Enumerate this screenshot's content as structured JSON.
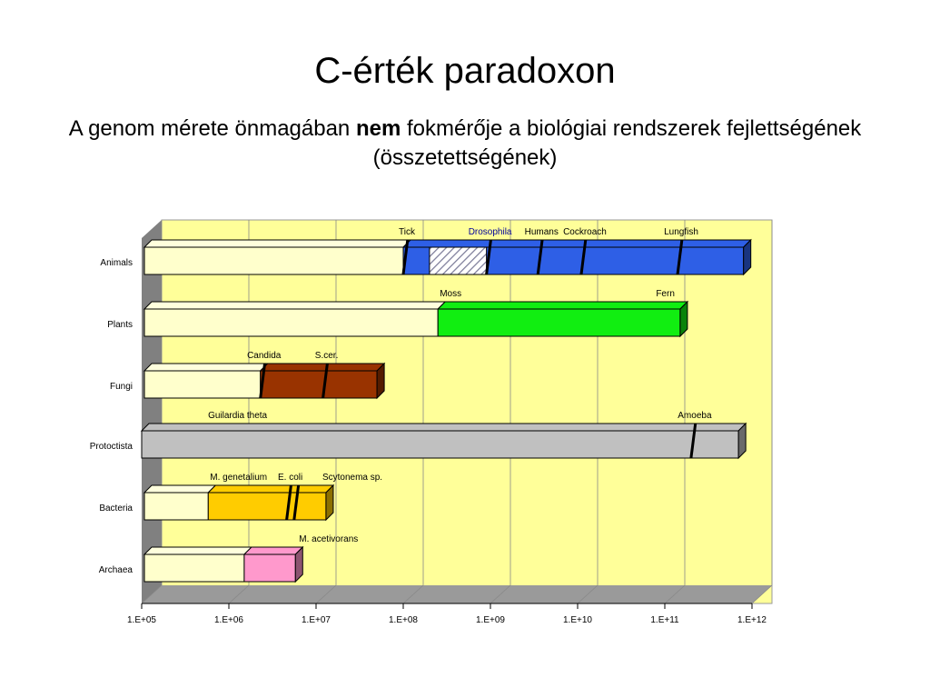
{
  "slide": {
    "title": "C-érték paradoxon",
    "subtitle_before": "A genom mérete önmagában ",
    "subtitle_bold": "nem",
    "subtitle_after": " fokmérője a biológiai rendszerek fejlettségének (összetettségének)"
  },
  "chart_data": {
    "type": "bar",
    "subtype": "floating range bar, 3D",
    "x_scale": "log",
    "xlim": [
      100000,
      1000000000000
    ],
    "x_ticks": [
      "1.E+05",
      "1.E+06",
      "1.E+07",
      "1.E+08",
      "1.E+09",
      "1.E+10",
      "1.E+11",
      "1.E+12"
    ],
    "grid": true,
    "background": "#ffff99",
    "categories": [
      "Animals",
      "Plants",
      "Fungi",
      "Protoctista",
      "Bacteria",
      "Archaea"
    ],
    "rows": [
      {
        "category": "Animals",
        "range": [
          100000000,
          800000000000
        ],
        "segments": [
          {
            "from": 100000000,
            "to": 800000000000,
            "color": "#2e5fe6"
          },
          {
            "from": 200000000,
            "to": 900000000,
            "color": "hatched"
          }
        ],
        "markers": [
          {
            "label": "Tick",
            "x": 100000000,
            "color": "#000000"
          },
          {
            "label": "Drosophila",
            "x": 900000000,
            "color": "#000099"
          },
          {
            "label": "Humans",
            "x": 3500000000,
            "color": "#000000"
          },
          {
            "label": "Cockroach",
            "x": 11000000000,
            "color": "#000000"
          },
          {
            "label": "Lungfish",
            "x": 140000000000,
            "color": "#000000"
          }
        ]
      },
      {
        "category": "Plants",
        "range": [
          250000000,
          150000000000
        ],
        "segments": [
          {
            "from": 250000000,
            "to": 150000000000,
            "color": "#11ee11"
          }
        ],
        "markers": [],
        "labels": [
          {
            "label": "Moss",
            "x": 250000000
          },
          {
            "label": "Fern",
            "x": 150000000000
          }
        ]
      },
      {
        "category": "Fungi",
        "range": [
          2300000,
          50000000
        ],
        "segments": [
          {
            "from": 2300000,
            "to": 50000000,
            "color": "#993300"
          }
        ],
        "markers": [
          {
            "label": "Candida",
            "x": 2300000,
            "color": "#000000"
          },
          {
            "label": "S.cer.",
            "x": 12000000,
            "color": "#000000"
          }
        ]
      },
      {
        "category": "Protoctista",
        "range": [
          100000,
          700000000000
        ],
        "segments": [
          {
            "from": 100000,
            "to": 700000000000,
            "color": "#c0c0c0"
          }
        ],
        "markers": [
          {
            "label": "Amoeba",
            "x": 200000000000,
            "color": "#000000"
          }
        ],
        "labels": [
          {
            "label": "Guilardia theta",
            "x": 550000
          }
        ]
      },
      {
        "category": "Bacteria",
        "range": [
          580000,
          13000000
        ],
        "segments": [
          {
            "from": 580000,
            "to": 13000000,
            "color": "#ffcc00"
          }
        ],
        "markers": [
          {
            "label": "",
            "x": 4600000,
            "color": "#000000"
          },
          {
            "label": "",
            "x": 5600000,
            "color": "#000000"
          }
        ],
        "labels": [
          {
            "label": "M. genetalium",
            "x": 580000
          },
          {
            "label": "E. coli",
            "x": 4600000
          },
          {
            "label": "Scytonema sp.",
            "x": 13000000
          }
        ]
      },
      {
        "category": "Archaea",
        "range": [
          1500000,
          5800000
        ],
        "segments": [
          {
            "from": 1500000,
            "to": 5800000,
            "color": "#ff99cc"
          }
        ],
        "markers": [],
        "labels": [
          {
            "label": "M. acetivorans",
            "x": 5800000
          }
        ]
      }
    ]
  }
}
